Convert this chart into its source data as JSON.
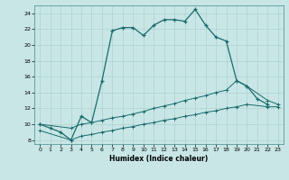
{
  "xlabel": "Humidex (Indice chaleur)",
  "background_color": "#c8e6e6",
  "grid_color": "#b0d0d0",
  "line_color": "#1a6b6b",
  "xlim": [
    -0.5,
    23.5
  ],
  "ylim": [
    7.5,
    25.0
  ],
  "xticks": [
    0,
    1,
    2,
    3,
    4,
    5,
    6,
    7,
    8,
    9,
    10,
    11,
    12,
    13,
    14,
    15,
    16,
    17,
    18,
    19,
    20,
    21,
    22,
    23
  ],
  "yticks": [
    8,
    10,
    12,
    14,
    16,
    18,
    20,
    22,
    24
  ],
  "line1_x": [
    0,
    1,
    2,
    3,
    4,
    5,
    6,
    7,
    8,
    9,
    10,
    11,
    12,
    13,
    14,
    15,
    16,
    17,
    18,
    19,
    20,
    21,
    22
  ],
  "line1_y": [
    10.0,
    9.5,
    9.0,
    8.0,
    11.0,
    10.2,
    15.5,
    21.8,
    22.2,
    22.2,
    21.2,
    22.5,
    23.2,
    23.2,
    23.0,
    24.5,
    22.5,
    21.0,
    20.5,
    15.5,
    14.8,
    13.2,
    12.5
  ],
  "line2_x": [
    0,
    3,
    4,
    5,
    6,
    7,
    8,
    9,
    10,
    11,
    12,
    13,
    14,
    15,
    16,
    17,
    18,
    19,
    20,
    22,
    23
  ],
  "line2_y": [
    10.0,
    9.5,
    10.0,
    10.2,
    10.5,
    10.8,
    11.0,
    11.3,
    11.6,
    12.0,
    12.3,
    12.6,
    13.0,
    13.3,
    13.6,
    14.0,
    14.3,
    15.5,
    14.8,
    13.0,
    12.5
  ],
  "line3_x": [
    0,
    3,
    4,
    5,
    6,
    7,
    8,
    9,
    10,
    11,
    12,
    13,
    14,
    15,
    16,
    17,
    18,
    19,
    20,
    22,
    23
  ],
  "line3_y": [
    9.2,
    8.0,
    8.5,
    8.7,
    9.0,
    9.2,
    9.5,
    9.7,
    10.0,
    10.2,
    10.5,
    10.7,
    11.0,
    11.2,
    11.5,
    11.7,
    12.0,
    12.2,
    12.5,
    12.2,
    12.2
  ]
}
